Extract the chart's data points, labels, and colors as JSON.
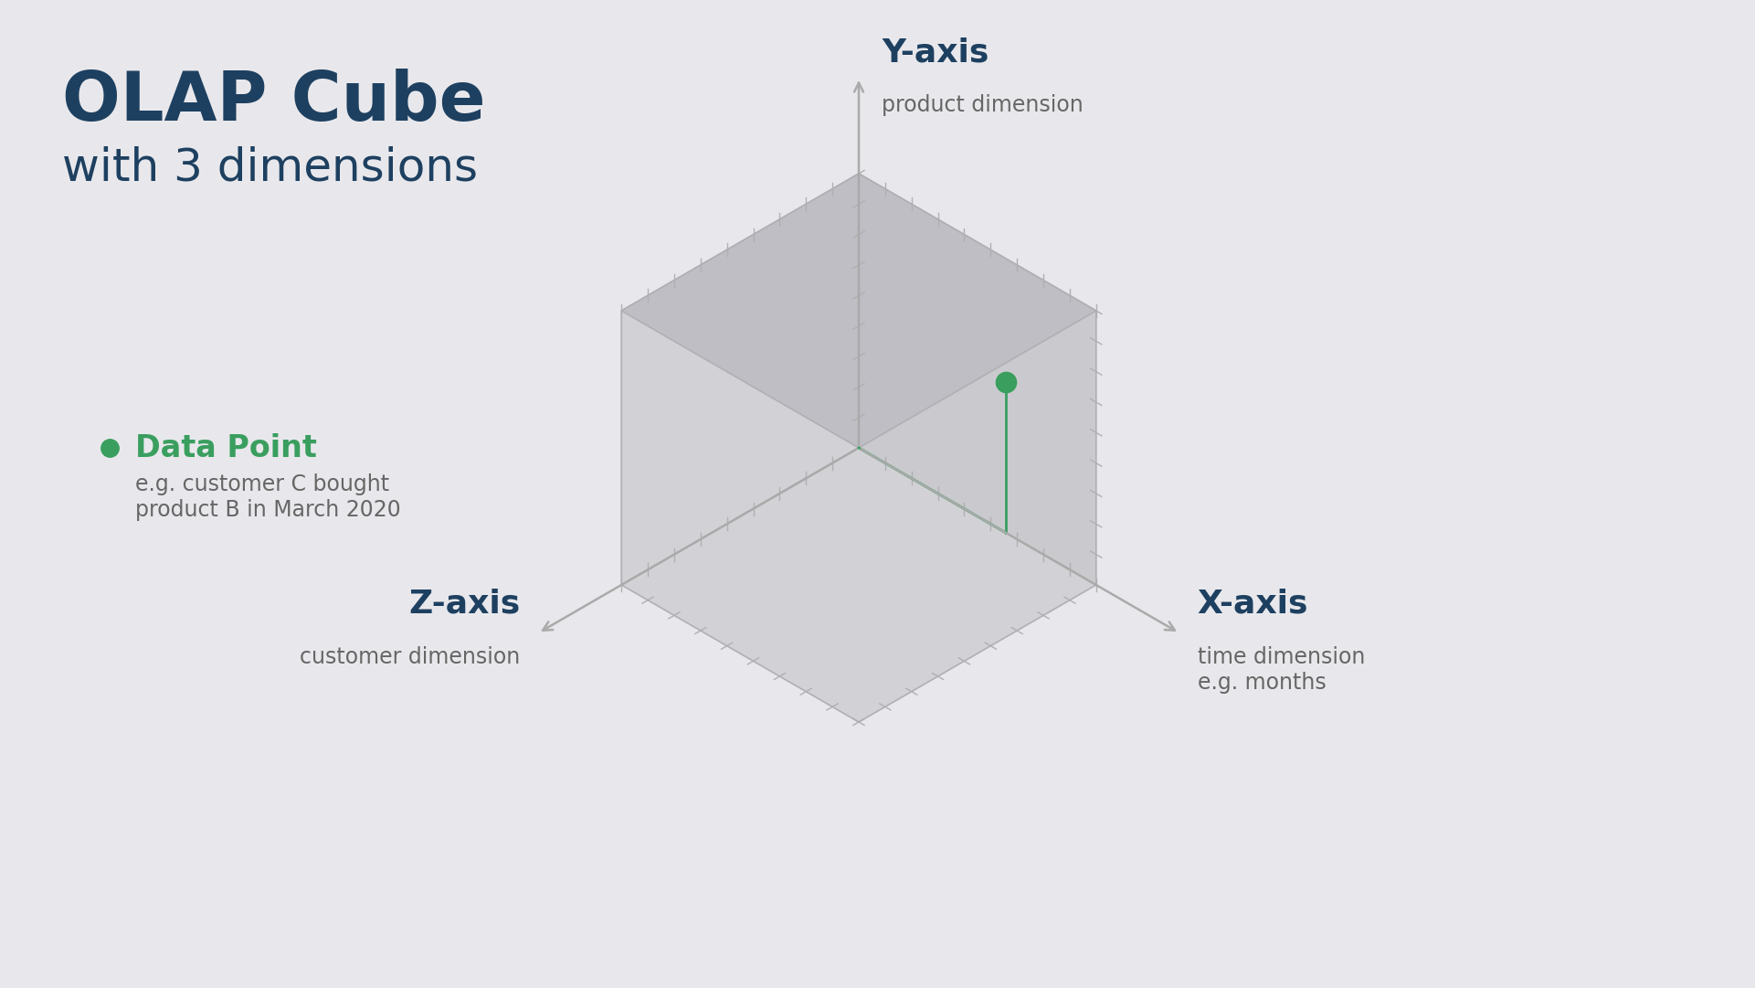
{
  "background_color": "#e8e8ec",
  "title_text": "OLAP Cube",
  "subtitle_text": "with 3 dimensions",
  "title_color": "#1e4060",
  "title_fontsize": 54,
  "subtitle_fontsize": 36,
  "data_point_label": "Data Point",
  "data_point_desc": "e.g. customer C bought\nproduct B in March 2020",
  "data_point_color": "#3a9e5f",
  "xaxis_label": "X-axis",
  "xaxis_desc": "time dimension\ne.g. months",
  "yaxis_label": "Y-axis",
  "yaxis_desc": "product dimension",
  "zaxis_label": "Z-axis",
  "zaxis_desc": "customer dimension",
  "axis_label_color": "#1e4060",
  "axis_desc_color": "#666666",
  "cube_face_left_color": "#d2d2d6",
  "cube_face_right_color": "#cacace",
  "cube_face_top_color": "#bebec4",
  "cube_edge_color": "#b0b0b4",
  "tick_color": "#b0b0b4",
  "arrow_color": "#aaaaaa",
  "green_color": "#3a9e5f",
  "ox": 940,
  "oy": 490,
  "cube_size": 300,
  "n_ticks": 9
}
